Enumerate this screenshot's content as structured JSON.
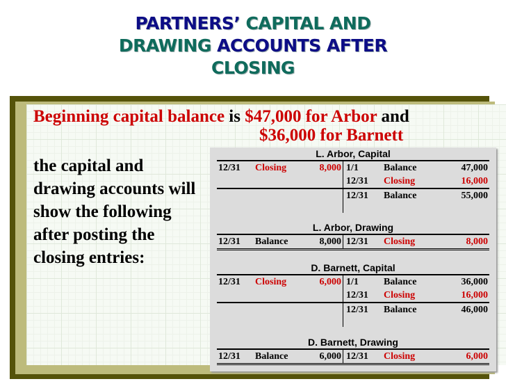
{
  "title": {
    "line1a": "PARTNERS’",
    "line1b": "CAPITAL AND",
    "line2a": "DRAWING",
    "line2b": "ACCOUNTS AFTER",
    "line3": "CLOSING"
  },
  "intro": {
    "p1": "Beginning capital balance",
    "p2": " is ",
    "p3": "$47,000 for Arbor",
    "p4": " and",
    "p5": "$36,000 for Barnett"
  },
  "body_text": "the capital and drawing accounts will show the following after posting the closing entries:",
  "colors": {
    "navy": "#0d0d86",
    "teal": "#0f6b5c",
    "red": "#cc0000",
    "olive": "#55530a",
    "khaki": "#bdbb7c"
  },
  "accounts": [
    {
      "title": "L. Arbor, Capital",
      "type": "capital",
      "rows": [
        [
          "12/31",
          "Closing",
          "8,000",
          "1/1",
          "Balance",
          "47,000"
        ],
        [
          "",
          "",
          "",
          "12/31",
          "Closing",
          "16,000"
        ],
        [
          "",
          "",
          "",
          "12/31",
          "Balance",
          "55,000"
        ]
      ]
    },
    {
      "title": "L. Arbor, Drawing",
      "type": "drawing",
      "rows": [
        [
          "12/31",
          "Balance",
          "8,000",
          "12/31",
          "Closing",
          "8,000"
        ]
      ]
    },
    {
      "title": "D. Barnett, Capital",
      "type": "capital",
      "rows": [
        [
          "12/31",
          "Closing",
          "6,000",
          "1/1",
          "Balance",
          "36,000"
        ],
        [
          "",
          "",
          "",
          "12/31",
          "Closing",
          "16,000"
        ],
        [
          "",
          "",
          "",
          "12/31",
          "Balance",
          "46,000"
        ]
      ]
    },
    {
      "title": "D. Barnett, Drawing",
      "type": "drawing",
      "rows": [
        [
          "12/31",
          "Balance",
          "6,000",
          "12/31",
          "Closing",
          "6,000"
        ]
      ]
    }
  ]
}
